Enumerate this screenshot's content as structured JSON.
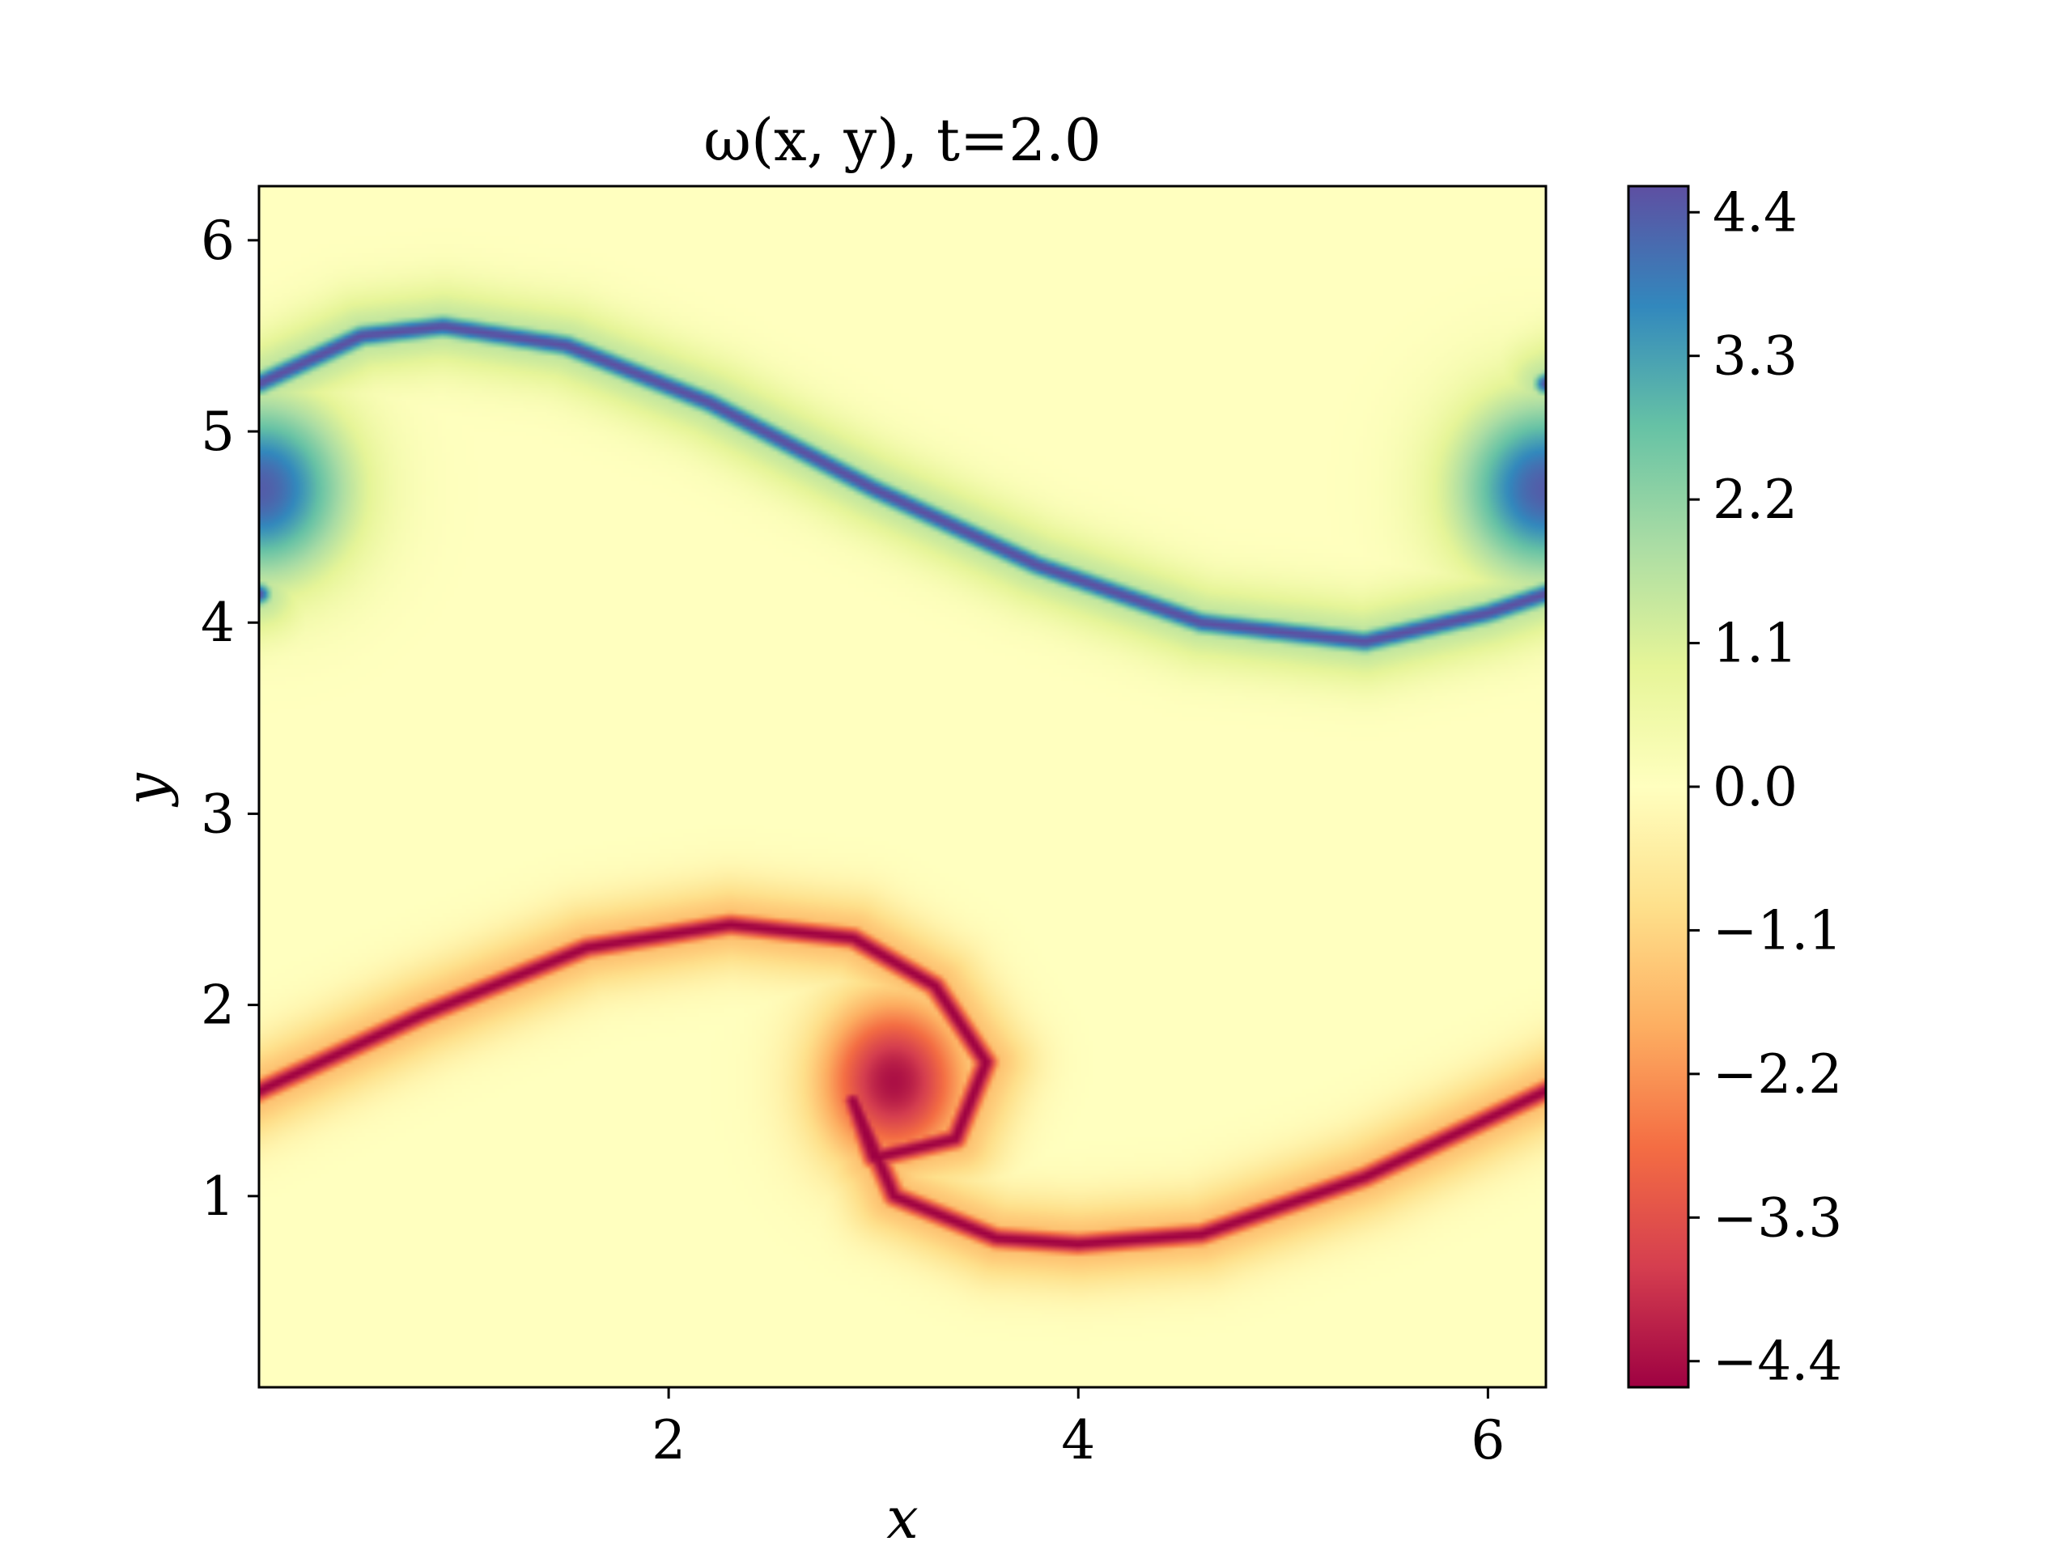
{
  "chart_data": {
    "type": "heatmap",
    "title": "ω(x, y),    t=2.0",
    "xlabel": "x",
    "ylabel": "y",
    "xlim": [
      0,
      6.283
    ],
    "ylim": [
      0,
      6.283
    ],
    "x_ticks": [
      {
        "value": 2,
        "label": "2"
      },
      {
        "value": 4,
        "label": "4"
      },
      {
        "value": 6,
        "label": "6"
      }
    ],
    "y_ticks": [
      {
        "value": 1,
        "label": "1"
      },
      {
        "value": 2,
        "label": "2"
      },
      {
        "value": 3,
        "label": "3"
      },
      {
        "value": 4,
        "label": "4"
      },
      {
        "value": 5,
        "label": "5"
      },
      {
        "value": 6,
        "label": "6"
      }
    ],
    "colorbar": {
      "vmin": -4.6,
      "vmax": 4.6,
      "colormap": "Spectral",
      "colors": [
        "#9e0142",
        "#d53e4f",
        "#f46d43",
        "#fdae61",
        "#fee08b",
        "#ffffbf",
        "#e6f598",
        "#abdda4",
        "#66c2a5",
        "#3288bd",
        "#5e4fa2"
      ],
      "ticks": [
        {
          "value": 4.4,
          "label": "4.4"
        },
        {
          "value": 3.3,
          "label": "3.3"
        },
        {
          "value": 2.2,
          "label": "2.2"
        },
        {
          "value": 1.1,
          "label": "1.1"
        },
        {
          "value": 0.0,
          "label": "0.0"
        },
        {
          "value": -1.1,
          "label": "−1.1"
        },
        {
          "value": -2.2,
          "label": "−2.2"
        },
        {
          "value": -3.3,
          "label": "−3.3"
        },
        {
          "value": -4.4,
          "label": "−4.4"
        }
      ]
    },
    "field": {
      "description_free": true,
      "positive_layer": {
        "sign": 1,
        "peak": 4.6,
        "center_curve": [
          [
            0,
            5.25
          ],
          [
            0.5,
            5.5
          ],
          [
            0.9,
            5.55
          ],
          [
            1.5,
            5.45
          ],
          [
            2.2,
            5.15
          ],
          [
            3.0,
            4.7
          ],
          [
            3.8,
            4.3
          ],
          [
            4.6,
            4.0
          ],
          [
            5.4,
            3.9
          ],
          [
            6.0,
            4.05
          ],
          [
            6.283,
            4.15
          ]
        ],
        "core": {
          "x": 6.283,
          "y": 4.7,
          "rx": 0.55,
          "ry": 0.6
        }
      },
      "negative_layer": {
        "sign": -1,
        "peak": -4.6,
        "center_curve": [
          [
            0,
            1.55
          ],
          [
            0.8,
            1.95
          ],
          [
            1.6,
            2.3
          ],
          [
            2.3,
            2.42
          ],
          [
            2.9,
            2.35
          ],
          [
            3.3,
            2.1
          ],
          [
            3.55,
            1.7
          ],
          [
            3.4,
            1.3
          ],
          [
            3.0,
            1.2
          ],
          [
            2.9,
            1.5
          ],
          [
            3.1,
            1.0
          ],
          [
            3.6,
            0.78
          ],
          [
            4.0,
            0.75
          ],
          [
            4.6,
            0.8
          ],
          [
            5.4,
            1.1
          ],
          [
            6.283,
            1.55
          ]
        ],
        "core": {
          "x": 3.1,
          "y": 1.6,
          "rx": 0.45,
          "ry": 0.55
        }
      }
    }
  }
}
